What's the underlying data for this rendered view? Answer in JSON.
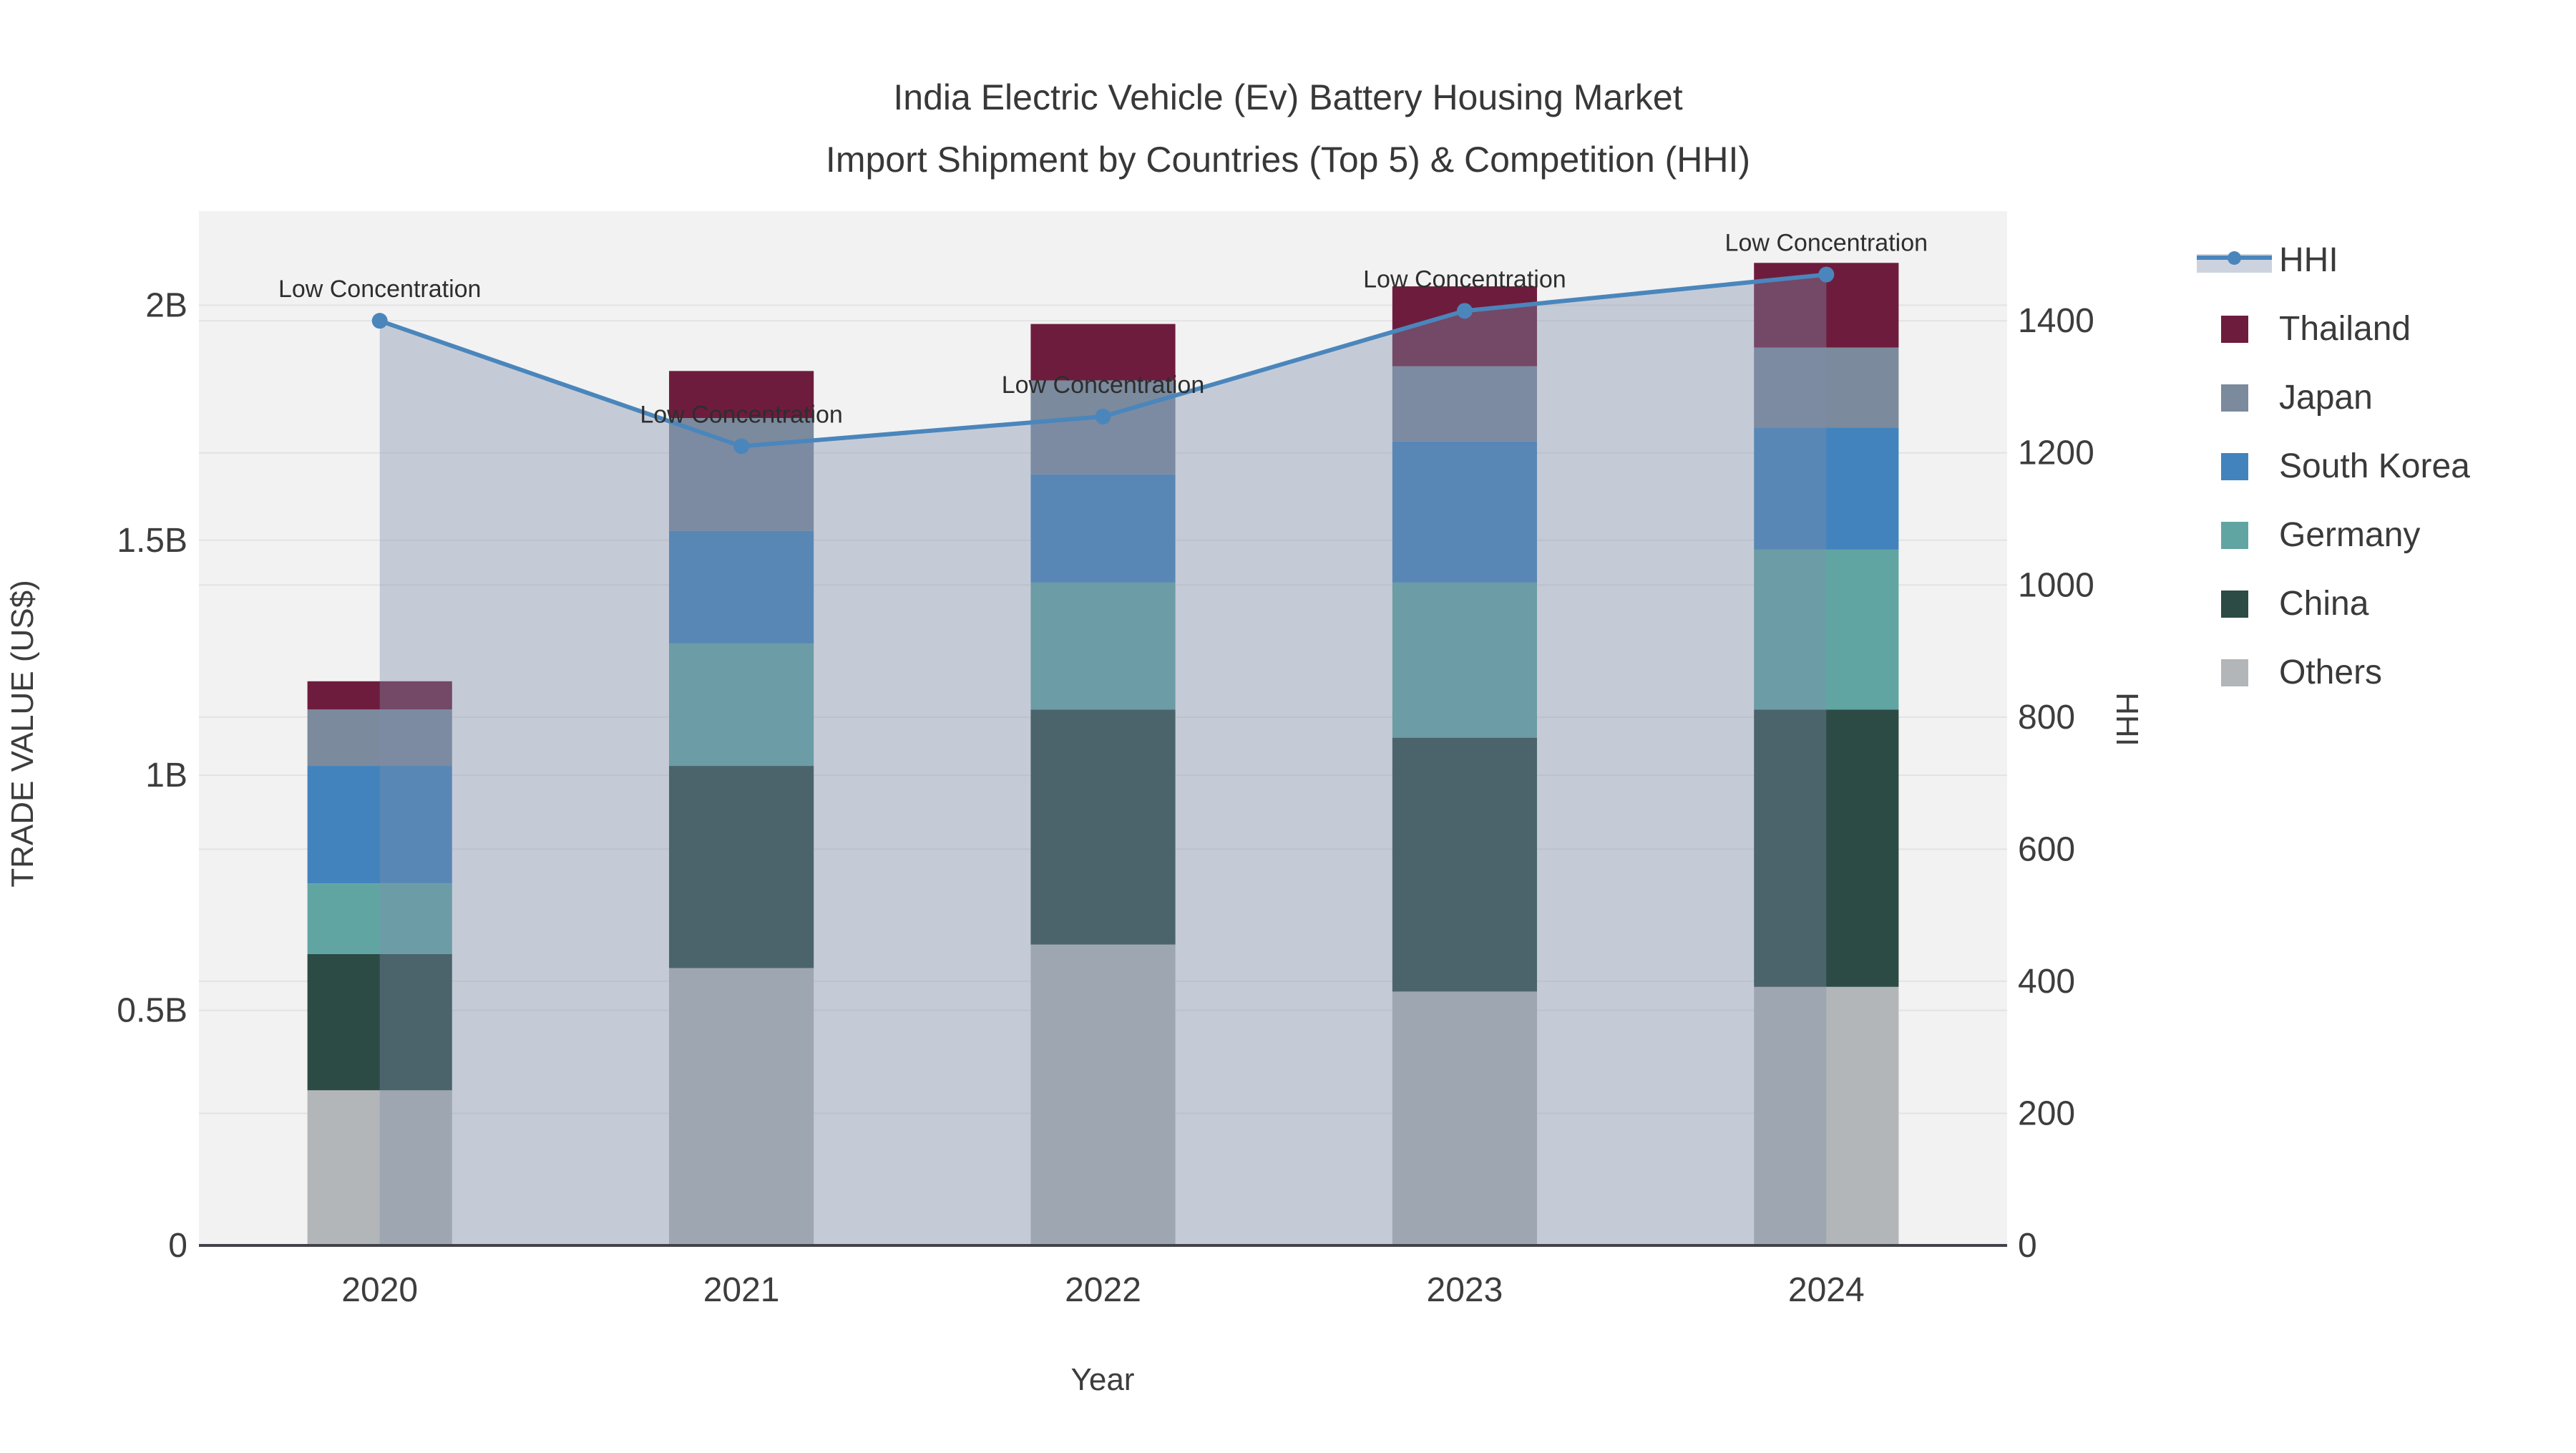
{
  "title": {
    "line1": "India Electric Vehicle (Ev) Battery Housing Market",
    "line2": "Import Shipment by Countries (Top 5) & Competition (HHI)"
  },
  "axes": {
    "x": {
      "title": "Year",
      "categories": [
        "2020",
        "2021",
        "2022",
        "2023",
        "2024"
      ]
    },
    "y_left": {
      "title": "TRADE VALUE (US$)",
      "range_billions": [
        0,
        2.2
      ],
      "ticks": [
        {
          "value": 0,
          "label": "0"
        },
        {
          "value": 0.5,
          "label": "0.5B"
        },
        {
          "value": 1,
          "label": "1B"
        },
        {
          "value": 1.5,
          "label": "1.5B"
        },
        {
          "value": 2,
          "label": "2B"
        }
      ]
    },
    "y_right": {
      "title": "HHI",
      "range": [
        0,
        1566
      ],
      "ticks": [
        {
          "value": 0,
          "label": "0"
        },
        {
          "value": 200,
          "label": "200"
        },
        {
          "value": 400,
          "label": "400"
        },
        {
          "value": 600,
          "label": "600"
        },
        {
          "value": 800,
          "label": "800"
        },
        {
          "value": 1000,
          "label": "1000"
        },
        {
          "value": 1200,
          "label": "1200"
        },
        {
          "value": 1400,
          "label": "1400"
        }
      ]
    }
  },
  "chart_data": {
    "type": "bar+line",
    "subtype": "stacked bars on left axis (trade value, billions US$) with HHI line + markers + translucent area fill on right axis",
    "categories": [
      "2020",
      "2021",
      "2022",
      "2023",
      "2024"
    ],
    "stacked_series_bottom_to_top": [
      {
        "name": "Others",
        "color": "#B3B6B8",
        "values_billions": [
          0.33,
          0.59,
          0.64,
          0.54,
          0.55
        ]
      },
      {
        "name": "China",
        "color": "#2C4B45",
        "values_billions": [
          0.29,
          0.43,
          0.5,
          0.54,
          0.59
        ]
      },
      {
        "name": "Germany",
        "color": "#61A5A3",
        "values_billions": [
          0.15,
          0.26,
          0.27,
          0.33,
          0.34
        ]
      },
      {
        "name": "South Korea",
        "color": "#4283BD",
        "values_billions": [
          0.25,
          0.24,
          0.23,
          0.3,
          0.26
        ]
      },
      {
        "name": "Japan",
        "color": "#7B8A9D",
        "values_billions": [
          0.12,
          0.24,
          0.2,
          0.16,
          0.17
        ]
      },
      {
        "name": "Thailand",
        "color": "#6E1C3D",
        "values_billions": [
          0.06,
          0.1,
          0.12,
          0.17,
          0.18
        ]
      }
    ],
    "bar_totals_billions": [
      1.2,
      1.86,
      1.96,
      2.04,
      2.09
    ],
    "line_series": {
      "name": "HHI",
      "axis": "right",
      "color": "#4A86BC",
      "fill_color": "rgba(125,141,169,0.39)",
      "values": [
        1400,
        1210,
        1255,
        1415,
        1470
      ]
    },
    "annotations": [
      {
        "category": "2020",
        "text": "Low Concentration"
      },
      {
        "category": "2021",
        "text": "Low Concentration"
      },
      {
        "category": "2022",
        "text": "Low Concentration"
      },
      {
        "category": "2023",
        "text": "Low Concentration"
      },
      {
        "category": "2024",
        "text": "Low Concentration"
      }
    ],
    "grid": true,
    "legend_position": "right"
  },
  "legend": {
    "items": [
      {
        "label": "HHI",
        "type": "line",
        "color": "#4A86BC",
        "band_color": "rgba(125,141,169,0.39)"
      },
      {
        "label": "Thailand",
        "type": "swatch",
        "color": "#6E1C3D"
      },
      {
        "label": "Japan",
        "type": "swatch",
        "color": "#7B8A9D"
      },
      {
        "label": "South Korea",
        "type": "swatch",
        "color": "#4283BD"
      },
      {
        "label": "Germany",
        "type": "swatch",
        "color": "#61A5A3"
      },
      {
        "label": "China",
        "type": "swatch",
        "color": "#2C4B45"
      },
      {
        "label": "Others",
        "type": "swatch",
        "color": "#B3B6B8"
      }
    ]
  },
  "colors": {
    "plot_background": "#F2F2F2",
    "gridline": "#E3E3E3",
    "axis_line": "#42434A",
    "text": "#3D3D3D"
  }
}
